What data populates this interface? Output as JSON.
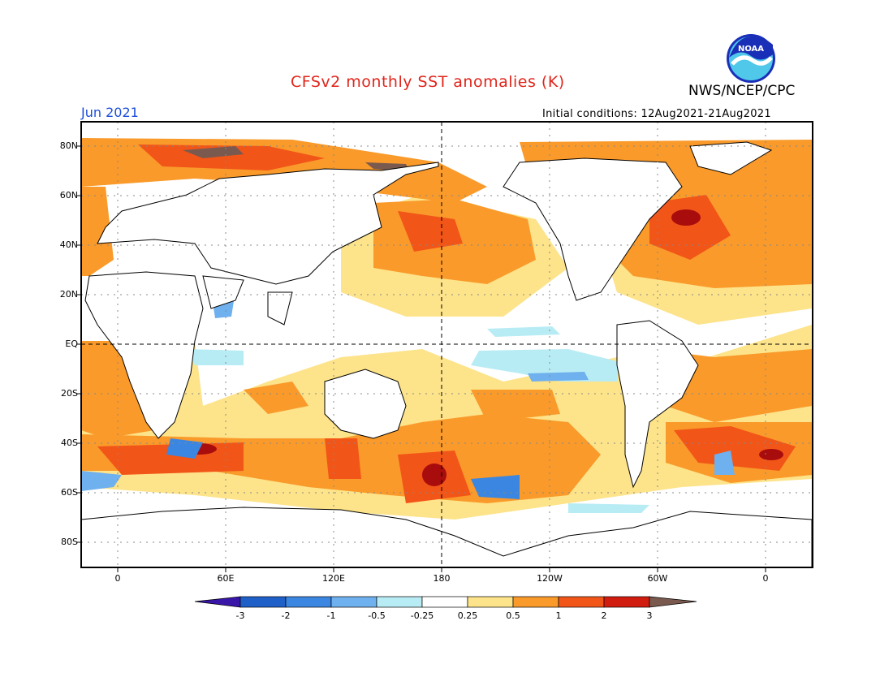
{
  "header": {
    "title": "CFSv2 monthly SST anomalies (K)",
    "agency": "NWS/NCEP/CPC",
    "logo_text": "NOAA",
    "date": "Jun 2021",
    "initial_conditions": "Initial conditions: 12Aug2021-21Aug2021"
  },
  "axes": {
    "lat_labels": [
      "80N",
      "60N",
      "40N",
      "20N",
      "EQ",
      "20S",
      "40S",
      "60S",
      "80S"
    ],
    "lon_labels": [
      "0",
      "60E",
      "120E",
      "180",
      "120W",
      "60W",
      "0"
    ]
  },
  "colorbar": {
    "labels": [
      "-3",
      "-2",
      "-1",
      "-0.5",
      "-0.25",
      "0.25",
      "0.5",
      "1",
      "2",
      "3"
    ],
    "colors": [
      "#3a16a8",
      "#1f5fc8",
      "#3b86e0",
      "#6fb0ee",
      "#b8ecf5",
      "#ffffff",
      "#fde38a",
      "#f99a2a",
      "#f25518",
      "#d11d10",
      "#a80c0c",
      "#7a5a4e"
    ]
  }
}
